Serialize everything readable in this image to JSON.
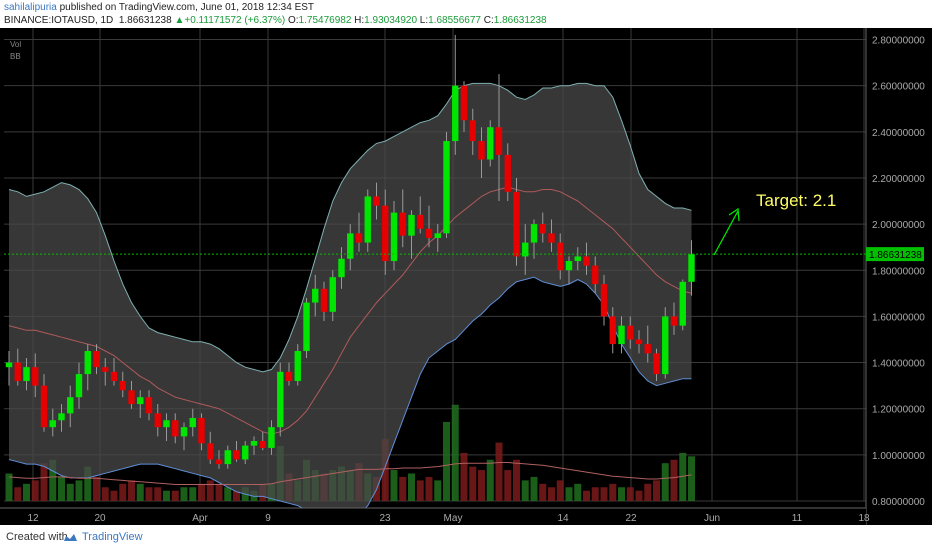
{
  "header": {
    "author": "sahilalipuria",
    "published": " published on TradingView.com, June 01, 2018 12:34 EST",
    "symbol": "BINANCE:IOTAUSD, 1D",
    "last": "1.86631238",
    "change": "+0.11171572 (+6.37%)",
    "o_label": "O:",
    "o": "1.75476982",
    "h_label": "H:",
    "h": "1.93034920",
    "l_label": "L:",
    "l": "1.68556677",
    "c_label": "C:",
    "c": "1.86631238"
  },
  "indicators": [
    "Vol",
    "BB"
  ],
  "annotation": "Target: 2.1",
  "price_label": "1.86631238",
  "footer": {
    "created": "Created with",
    "brand": "TradingView"
  },
  "colors": {
    "up": "#00e600",
    "down": "#e60000",
    "band_fill": "#4a4a4a",
    "band_line": "#5f8fd8",
    "basis": "#b05a5a",
    "target": "#ffff66",
    "price_line": "#00c000"
  },
  "chart_data": {
    "type": "candlestick",
    "y_ticks": [
      "0.80000000",
      "1.00000000",
      "1.20000000",
      "1.40000000",
      "1.60000000",
      "1.80000000",
      "2.00000000",
      "2.20000000",
      "2.40000000",
      "2.60000000",
      "2.80000000"
    ],
    "x_ticks": [
      "12",
      "20",
      "Apr",
      "9",
      "23",
      "May",
      "14",
      "22",
      "Jun",
      "11",
      "18"
    ],
    "ylim": [
      0.8,
      2.85
    ],
    "grid": true,
    "candles": [
      [
        1.38,
        1.45,
        1.3,
        1.4
      ],
      [
        1.4,
        1.46,
        1.3,
        1.32
      ],
      [
        1.32,
        1.42,
        1.28,
        1.38
      ],
      [
        1.38,
        1.44,
        1.25,
        1.3
      ],
      [
        1.3,
        1.35,
        1.1,
        1.12
      ],
      [
        1.12,
        1.2,
        1.08,
        1.15
      ],
      [
        1.15,
        1.22,
        1.1,
        1.18
      ],
      [
        1.18,
        1.3,
        1.12,
        1.25
      ],
      [
        1.25,
        1.4,
        1.2,
        1.35
      ],
      [
        1.35,
        1.48,
        1.28,
        1.45
      ],
      [
        1.45,
        1.48,
        1.35,
        1.38
      ],
      [
        1.38,
        1.42,
        1.3,
        1.36
      ],
      [
        1.36,
        1.42,
        1.3,
        1.32
      ],
      [
        1.32,
        1.36,
        1.25,
        1.28
      ],
      [
        1.28,
        1.32,
        1.2,
        1.22
      ],
      [
        1.22,
        1.28,
        1.16,
        1.25
      ],
      [
        1.25,
        1.28,
        1.15,
        1.18
      ],
      [
        1.18,
        1.22,
        1.08,
        1.12
      ],
      [
        1.12,
        1.18,
        1.06,
        1.15
      ],
      [
        1.15,
        1.18,
        1.05,
        1.08
      ],
      [
        1.08,
        1.14,
        1.02,
        1.12
      ],
      [
        1.12,
        1.2,
        1.08,
        1.16
      ],
      [
        1.16,
        1.18,
        1.02,
        1.05
      ],
      [
        1.05,
        1.1,
        0.96,
        0.98
      ],
      [
        0.98,
        1.02,
        0.94,
        0.96
      ],
      [
        0.96,
        1.04,
        0.94,
        1.02
      ],
      [
        1.02,
        1.06,
        0.97,
        0.98
      ],
      [
        0.98,
        1.06,
        0.96,
        1.04
      ],
      [
        1.04,
        1.08,
        1.0,
        1.06
      ],
      [
        1.06,
        1.1,
        1.02,
        1.03
      ],
      [
        1.03,
        1.15,
        1.0,
        1.12
      ],
      [
        1.12,
        1.4,
        1.08,
        1.36
      ],
      [
        1.36,
        1.4,
        1.3,
        1.32
      ],
      [
        1.32,
        1.48,
        1.3,
        1.45
      ],
      [
        1.45,
        1.68,
        1.42,
        1.66
      ],
      [
        1.66,
        1.78,
        1.6,
        1.72
      ],
      [
        1.72,
        1.75,
        1.58,
        1.62
      ],
      [
        1.62,
        1.8,
        1.58,
        1.77
      ],
      [
        1.77,
        1.9,
        1.72,
        1.85
      ],
      [
        1.85,
        2.0,
        1.8,
        1.96
      ],
      [
        1.96,
        2.05,
        1.88,
        1.92
      ],
      [
        1.92,
        2.15,
        1.88,
        2.12
      ],
      [
        2.12,
        2.18,
        2.02,
        2.08
      ],
      [
        2.08,
        2.15,
        1.78,
        1.84
      ],
      [
        1.84,
        2.1,
        1.8,
        2.05
      ],
      [
        2.05,
        2.15,
        1.9,
        1.95
      ],
      [
        1.95,
        2.06,
        1.85,
        2.04
      ],
      [
        2.04,
        2.12,
        1.96,
        1.98
      ],
      [
        1.98,
        2.08,
        1.9,
        1.94
      ],
      [
        1.94,
        2.0,
        1.88,
        1.96
      ],
      [
        1.96,
        2.4,
        1.94,
        2.36
      ],
      [
        2.36,
        2.82,
        2.3,
        2.6
      ],
      [
        2.6,
        2.62,
        2.4,
        2.45
      ],
      [
        2.45,
        2.5,
        2.3,
        2.36
      ],
      [
        2.36,
        2.42,
        2.2,
        2.28
      ],
      [
        2.28,
        2.45,
        2.25,
        2.42
      ],
      [
        2.42,
        2.65,
        2.1,
        2.3
      ],
      [
        2.3,
        2.35,
        2.1,
        2.14
      ],
      [
        2.14,
        2.2,
        1.82,
        1.86
      ],
      [
        1.86,
        2.0,
        1.78,
        1.92
      ],
      [
        1.92,
        2.02,
        1.85,
        2.0
      ],
      [
        2.0,
        2.05,
        1.92,
        1.96
      ],
      [
        1.96,
        2.02,
        1.88,
        1.92
      ],
      [
        1.92,
        1.96,
        1.76,
        1.8
      ],
      [
        1.8,
        1.86,
        1.74,
        1.84
      ],
      [
        1.84,
        1.9,
        1.8,
        1.86
      ],
      [
        1.86,
        1.92,
        1.78,
        1.82
      ],
      [
        1.82,
        1.86,
        1.7,
        1.74
      ],
      [
        1.74,
        1.78,
        1.56,
        1.6
      ],
      [
        1.6,
        1.64,
        1.44,
        1.48
      ],
      [
        1.48,
        1.6,
        1.44,
        1.56
      ],
      [
        1.56,
        1.6,
        1.46,
        1.5
      ],
      [
        1.5,
        1.54,
        1.44,
        1.48
      ],
      [
        1.48,
        1.56,
        1.4,
        1.44
      ],
      [
        1.44,
        1.46,
        1.32,
        1.35
      ],
      [
        1.35,
        1.64,
        1.33,
        1.6
      ],
      [
        1.6,
        1.66,
        1.52,
        1.56
      ],
      [
        1.56,
        1.76,
        1.54,
        1.75
      ],
      [
        1.75,
        1.93,
        1.69,
        1.87
      ]
    ],
    "bb_upper": [
      2.15,
      2.14,
      2.12,
      2.13,
      2.14,
      2.16,
      2.18,
      2.17,
      2.15,
      2.11,
      2.05,
      1.95,
      1.84,
      1.74,
      1.66,
      1.6,
      1.55,
      1.53,
      1.52,
      1.51,
      1.5,
      1.49,
      1.49,
      1.48,
      1.46,
      1.43,
      1.4,
      1.38,
      1.37,
      1.36,
      1.37,
      1.42,
      1.5,
      1.6,
      1.72,
      1.85,
      1.98,
      2.1,
      2.18,
      2.24,
      2.28,
      2.32,
      2.35,
      2.36,
      2.38,
      2.4,
      2.42,
      2.44,
      2.45,
      2.47,
      2.52,
      2.58,
      2.6,
      2.61,
      2.61,
      2.61,
      2.6,
      2.58,
      2.55,
      2.54,
      2.56,
      2.59,
      2.59,
      2.6,
      2.6,
      2.61,
      2.61,
      2.6,
      2.6,
      2.55,
      2.45,
      2.34,
      2.22,
      2.15,
      2.12,
      2.09,
      2.07,
      2.07,
      2.06
    ],
    "bb_lower": [
      0.98,
      0.97,
      0.96,
      0.96,
      0.95,
      0.93,
      0.91,
      0.9,
      0.9,
      0.9,
      0.91,
      0.92,
      0.93,
      0.94,
      0.95,
      0.96,
      0.96,
      0.96,
      0.95,
      0.94,
      0.93,
      0.92,
      0.91,
      0.9,
      0.88,
      0.86,
      0.84,
      0.83,
      0.82,
      0.82,
      0.81,
      0.8,
      0.79,
      0.78,
      0.76,
      0.74,
      0.72,
      0.7,
      0.7,
      0.71,
      0.74,
      0.78,
      0.85,
      0.95,
      1.05,
      1.15,
      1.25,
      1.35,
      1.42,
      1.45,
      1.48,
      1.5,
      1.54,
      1.58,
      1.61,
      1.65,
      1.68,
      1.72,
      1.75,
      1.76,
      1.77,
      1.75,
      1.74,
      1.73,
      1.74,
      1.76,
      1.74,
      1.7,
      1.65,
      1.56,
      1.48,
      1.42,
      1.36,
      1.32,
      1.3,
      1.31,
      1.32,
      1.33,
      1.33
    ],
    "bb_basis": [
      1.56,
      1.55,
      1.54,
      1.54,
      1.53,
      1.52,
      1.51,
      1.5,
      1.49,
      1.48,
      1.47,
      1.45,
      1.43,
      1.4,
      1.37,
      1.34,
      1.32,
      1.29,
      1.27,
      1.25,
      1.24,
      1.23,
      1.22,
      1.21,
      1.2,
      1.18,
      1.16,
      1.14,
      1.12,
      1.1,
      1.09,
      1.1,
      1.12,
      1.15,
      1.19,
      1.25,
      1.31,
      1.37,
      1.44,
      1.51,
      1.56,
      1.61,
      1.66,
      1.7,
      1.74,
      1.78,
      1.83,
      1.88,
      1.92,
      1.95,
      1.99,
      2.03,
      2.06,
      2.09,
      2.12,
      2.14,
      2.15,
      2.16,
      2.15,
      2.14,
      2.14,
      2.15,
      2.15,
      2.14,
      2.12,
      2.1,
      2.07,
      2.04,
      2.01,
      1.98,
      1.94,
      1.9,
      1.86,
      1.82,
      1.78,
      1.75,
      1.73,
      1.71,
      1.7
    ],
    "volume": [
      40,
      20,
      25,
      30,
      55,
      60,
      35,
      25,
      30,
      50,
      35,
      20,
      15,
      25,
      30,
      25,
      20,
      20,
      15,
      15,
      20,
      20,
      25,
      30,
      25,
      20,
      15,
      20,
      15,
      25,
      25,
      80,
      40,
      30,
      60,
      45,
      40,
      45,
      50,
      45,
      55,
      40,
      35,
      90,
      45,
      35,
      40,
      30,
      35,
      30,
      115,
      140,
      70,
      50,
      45,
      60,
      85,
      45,
      60,
      30,
      35,
      25,
      20,
      30,
      20,
      25,
      15,
      20,
      20,
      25,
      20,
      20,
      15,
      25,
      30,
      55,
      60,
      70,
      65
    ],
    "volume_ma": [
      35,
      34,
      33,
      33,
      34,
      35,
      35,
      34,
      33,
      33,
      33,
      32,
      31,
      30,
      29,
      28,
      27,
      26,
      25,
      24,
      24,
      24,
      24,
      24,
      24,
      24,
      24,
      24,
      24,
      24,
      25,
      28,
      30,
      32,
      34,
      36,
      38,
      40,
      42,
      44,
      46,
      46,
      46,
      47,
      47,
      48,
      48,
      48,
      49,
      50,
      52,
      54,
      55,
      55,
      55,
      55,
      56,
      56,
      55,
      54,
      53,
      52,
      50,
      48,
      46,
      44,
      42,
      40,
      38,
      36,
      35,
      34,
      33,
      32,
      32,
      33,
      34,
      36,
      38
    ]
  }
}
